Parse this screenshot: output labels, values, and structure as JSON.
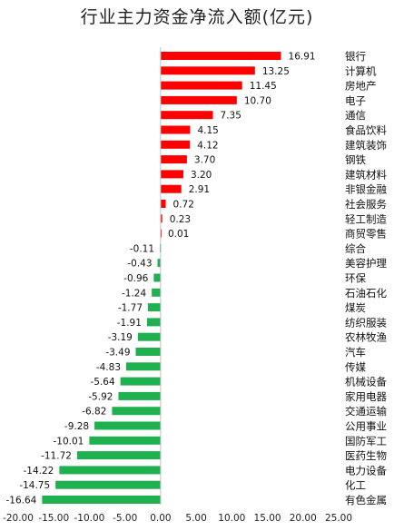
{
  "chart_data": {
    "type": "bar",
    "orientation": "horizontal",
    "title": "行业主力资金净流入额(亿元)",
    "categories": [
      "银行",
      "计算机",
      "房地产",
      "电子",
      "通信",
      "食品饮料",
      "建筑装饰",
      "钢铁",
      "建筑材料",
      "非银金融",
      "社会服务",
      "轻工制造",
      "商贸零售",
      "综合",
      "美容护理",
      "环保",
      "石油石化",
      "煤炭",
      "纺织服装",
      "农林牧渔",
      "汽车",
      "传媒",
      "机械设备",
      "家用电器",
      "交通运输",
      "公用事业",
      "国防军工",
      "医药生物",
      "电力设备",
      "化工",
      "有色金属"
    ],
    "values": [
      16.91,
      13.25,
      11.45,
      10.7,
      7.35,
      4.15,
      4.12,
      3.7,
      3.2,
      2.91,
      0.72,
      0.23,
      0.01,
      -0.11,
      -0.43,
      -0.96,
      -1.24,
      -1.77,
      -1.91,
      -3.19,
      -3.49,
      -4.83,
      -5.64,
      -5.92,
      -6.82,
      -9.28,
      -10.01,
      -11.72,
      -14.22,
      -14.75,
      -16.64
    ],
    "value_labels": [
      "16.91",
      "13.25",
      "11.45",
      "10.70",
      "7.35",
      "4.15",
      "4.12",
      "3.70",
      "3.20",
      "2.91",
      "0.72",
      "0.23",
      "0.01",
      "-0.11",
      "-0.43",
      "-0.96",
      "-1.24",
      "-1.77",
      "-1.91",
      "-3.19",
      "-3.49",
      "-4.83",
      "-5.64",
      "-5.92",
      "-6.82",
      "-9.28",
      "-10.01",
      "-11.72",
      "-14.22",
      "-14.75",
      "-16.64"
    ],
    "xlim": [
      -20,
      25
    ],
    "xticks": [
      "-20.00",
      "-15.00",
      "-10.00",
      "-5.00",
      "0.00",
      "5.00",
      "10.00",
      "15.00",
      "20.00",
      "25.00"
    ],
    "xtick_values": [
      -20,
      -15,
      -10,
      -5,
      0,
      5,
      10,
      15,
      20,
      25
    ],
    "grid": false,
    "legend": "none",
    "colors": {
      "positive": "#ff0000",
      "negative": "#1fb050",
      "axis": "#bfbfbf"
    }
  }
}
